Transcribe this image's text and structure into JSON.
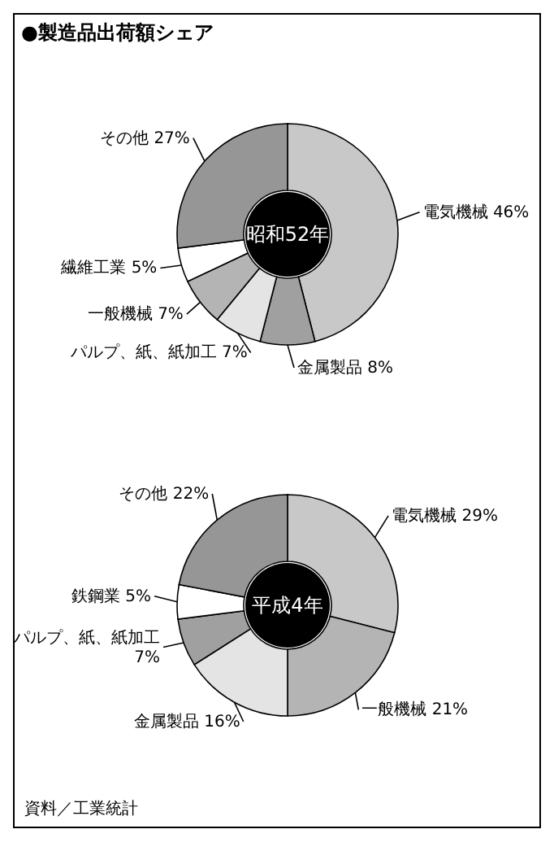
{
  "chart_data": [
    {
      "type": "donut",
      "title": "●製造品出荷額シェア",
      "annotations": [
        "昭和52年"
      ],
      "categories": [
        "電気機械",
        "金属製品",
        "パルプ、紙、紙加工",
        "一般機械",
        "繊維工業",
        "その他"
      ],
      "values": [
        46,
        8,
        7,
        7,
        5,
        27
      ],
      "value_labels": [
        "46%",
        "8%",
        "7%",
        "7%",
        "5%",
        "27%"
      ],
      "colors": [
        "#c8c8c8",
        "#a0a0a0",
        "#e4e4e4",
        "#b4b4b4",
        "#ffffff",
        "#969696"
      ],
      "legend": false
    },
    {
      "type": "donut",
      "annotations": [
        "平成4年",
        "資料／工業統計"
      ],
      "categories": [
        "電気機械",
        "一般機械",
        "金属製品",
        "パルプ、紙、紙加工",
        "鉄鋼業",
        "その他"
      ],
      "values": [
        29,
        21,
        16,
        7,
        5,
        22
      ],
      "value_labels": [
        "29%",
        "21%",
        "16%",
        "7%",
        "5%",
        "22%"
      ],
      "colors": [
        "#c8c8c8",
        "#b4b4b4",
        "#e4e4e4",
        "#a0a0a0",
        "#ffffff",
        "#969696"
      ],
      "legend": false
    }
  ]
}
